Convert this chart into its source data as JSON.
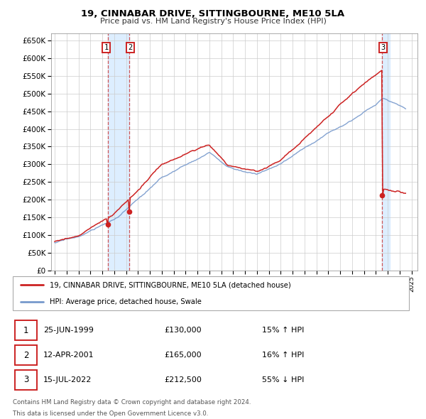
{
  "title": "19, CINNABAR DRIVE, SITTINGBOURNE, ME10 5LA",
  "subtitle": "Price paid vs. HM Land Registry's House Price Index (HPI)",
  "legend_line1": "19, CINNABAR DRIVE, SITTINGBOURNE, ME10 5LA (detached house)",
  "legend_line2": "HPI: Average price, detached house, Swale",
  "footer1": "Contains HM Land Registry data © Crown copyright and database right 2024.",
  "footer2": "This data is licensed under the Open Government Licence v3.0.",
  "transactions": [
    {
      "id": 1,
      "date": "25-JUN-1999",
      "price": 130000,
      "price_fmt": "£130,000",
      "pct": "15%",
      "dir": "↑",
      "year": 1999.47
    },
    {
      "id": 2,
      "date": "12-APR-2001",
      "price": 165000,
      "price_fmt": "£165,000",
      "pct": "16%",
      "dir": "↑",
      "year": 2001.28
    },
    {
      "id": 3,
      "date": "15-JUL-2022",
      "price": 212500,
      "price_fmt": "£212,500",
      "pct": "55%",
      "dir": "↓",
      "year": 2022.54
    }
  ],
  "hpi_color": "#7799cc",
  "price_color": "#cc2222",
  "dot_color": "#cc2222",
  "vline_color": "#cc4444",
  "shade_color": "#ddeeff",
  "grid_color": "#cccccc",
  "background_color": "#ffffff",
  "ylim": [
    0,
    670000
  ],
  "yticks": [
    0,
    50000,
    100000,
    150000,
    200000,
    250000,
    300000,
    350000,
    400000,
    450000,
    500000,
    550000,
    600000,
    650000
  ],
  "xlim_start": 1994.7,
  "xlim_end": 2025.5,
  "xtick_years": [
    1995,
    1996,
    1997,
    1998,
    1999,
    2000,
    2001,
    2002,
    2003,
    2004,
    2005,
    2006,
    2007,
    2008,
    2009,
    2010,
    2011,
    2012,
    2013,
    2014,
    2015,
    2016,
    2017,
    2018,
    2019,
    2020,
    2021,
    2022,
    2023,
    2024,
    2025
  ]
}
